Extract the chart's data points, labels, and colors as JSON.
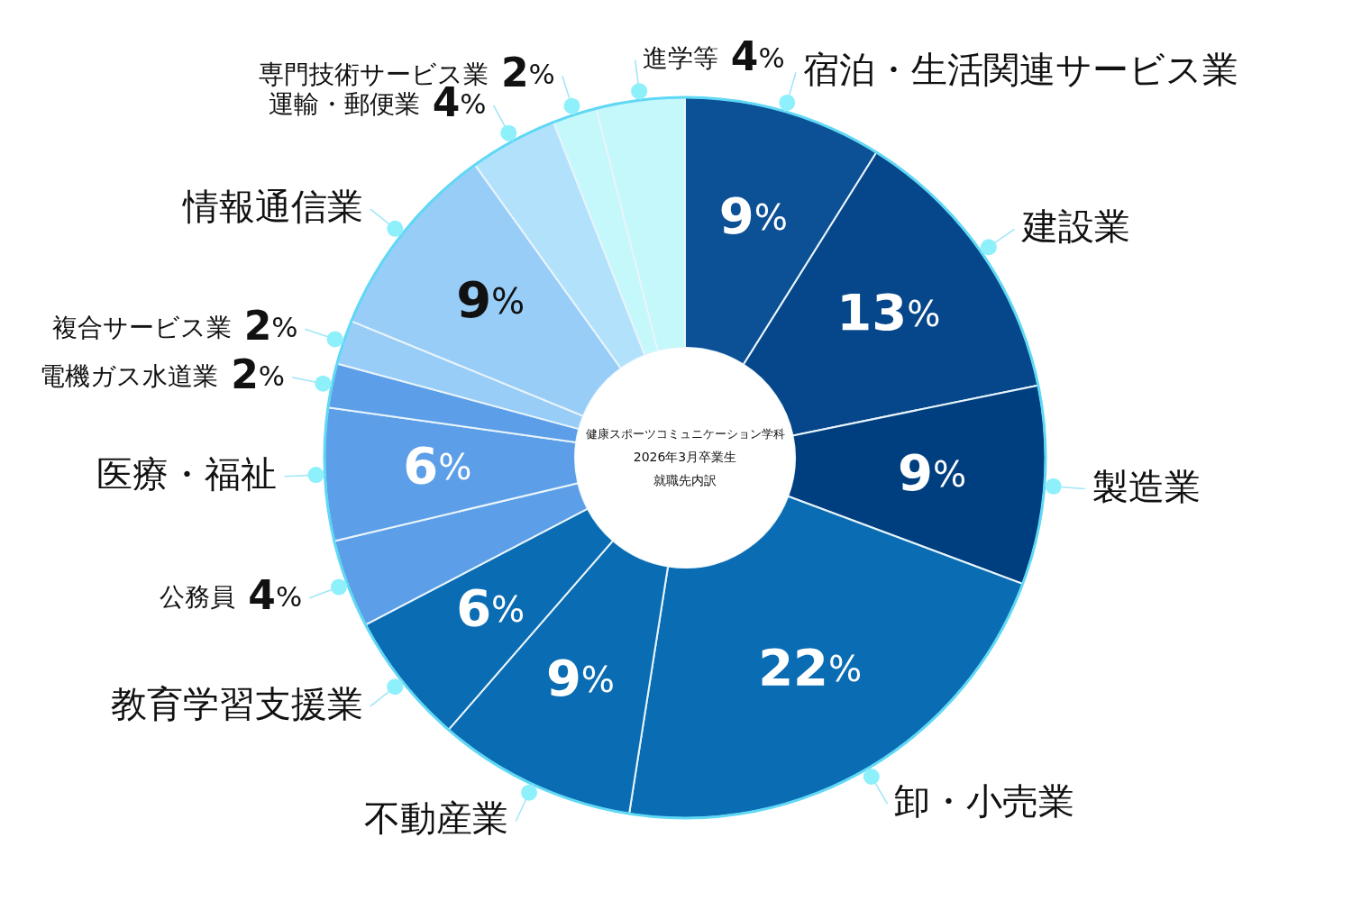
{
  "chart_data": {
    "type": "donut",
    "title": "健康スポーツコミュニケーション学科",
    "subtitle": "2026年3月卒業生",
    "annotations": [
      "就職先内訳"
    ],
    "categories": [
      "宿泊・生活関連サービス業",
      "建設業",
      "製造業",
      "卸・小売業",
      "不動産業",
      "教育学習支援業",
      "公務員",
      "医療・福祉",
      "電機ガス水道業",
      "複合サービス業",
      "情報通信業",
      "運輸・郵便業",
      "専門技術サービス業",
      "進学等"
    ],
    "values": [
      9,
      13,
      9,
      22,
      9,
      6,
      4,
      6,
      2,
      2,
      9,
      4,
      2,
      4
    ],
    "value_labels": [
      "9%",
      "13%",
      "9%",
      "22%",
      "9%",
      "6%",
      "4%",
      "6%",
      "2%",
      "2%",
      "9%",
      "4%",
      "2%",
      "4%"
    ],
    "colors": [
      "#0c5096",
      "#05478a",
      "#003f7f",
      "#0a6cb3",
      "#0a6cb3",
      "#0a6cb3",
      "#5c9fe8",
      "#5c9fe8",
      "#5c9fe8",
      "#98cdf8",
      "#98cdf8",
      "#b2e2fb",
      "#c4f8fb",
      "#c4f8fb"
    ]
  }
}
